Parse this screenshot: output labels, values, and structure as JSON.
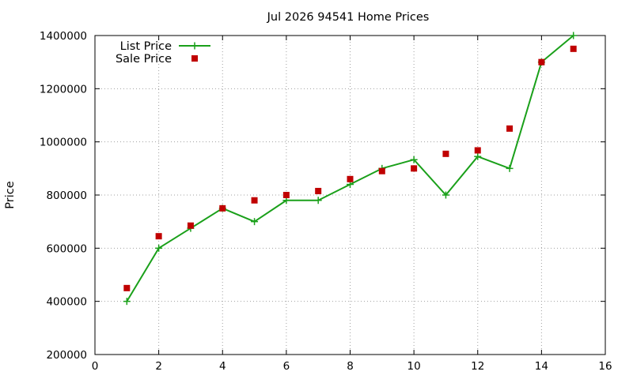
{
  "chart_data": {
    "type": "line",
    "title": "Jul 2026 94541 Home Prices",
    "xlabel": "",
    "ylabel": "Price",
    "xlim": [
      0,
      16
    ],
    "ylim": [
      200000,
      1400000
    ],
    "xticks": [
      0,
      2,
      4,
      6,
      8,
      10,
      12,
      14,
      16
    ],
    "yticks": [
      200000,
      400000,
      600000,
      800000,
      1000000,
      1200000,
      1400000
    ],
    "xtick_labels": [
      "0",
      "2",
      "4",
      "6",
      "8",
      "10",
      "12",
      "14",
      "16"
    ],
    "ytick_labels": [
      "200000",
      "400000",
      "600000",
      "800000",
      "1000000",
      "1200000",
      "1400000"
    ],
    "grid": true,
    "legend_position": "top-left",
    "series": [
      {
        "name": "List Price",
        "style": "linespoints",
        "marker": "plus",
        "color": "#1aa01a",
        "x": [
          1,
          2,
          3,
          4,
          5,
          6,
          7,
          8,
          9,
          10,
          11,
          12,
          13,
          14,
          15
        ],
        "values": [
          400000,
          600000,
          675000,
          750000,
          700000,
          780000,
          780000,
          840000,
          900000,
          933000,
          800000,
          945000,
          900000,
          1300000,
          1400000
        ]
      },
      {
        "name": "Sale Price",
        "style": "points",
        "marker": "square",
        "color": "#c00000",
        "x": [
          1,
          2,
          3,
          4,
          5,
          6,
          7,
          8,
          9,
          10,
          11,
          12,
          13,
          14,
          15
        ],
        "values": [
          450000,
          645000,
          685000,
          750000,
          780000,
          800000,
          815000,
          860000,
          890000,
          900000,
          955000,
          968000,
          1050000,
          1300000,
          1350000
        ]
      }
    ]
  }
}
